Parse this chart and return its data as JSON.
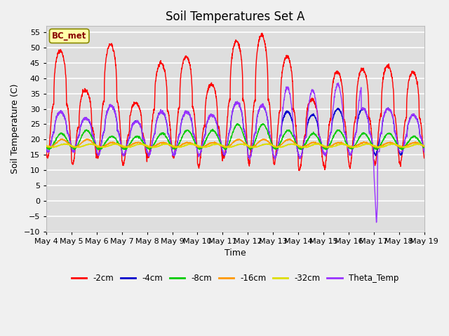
{
  "title": "Soil Temperatures Set A",
  "xlabel": "Time",
  "ylabel": "Soil Temperature (C)",
  "ylim": [
    -10,
    57
  ],
  "yticks": [
    -10,
    -5,
    0,
    5,
    10,
    15,
    20,
    25,
    30,
    35,
    40,
    45,
    50,
    55
  ],
  "annotation_text": "BC_met",
  "series_colors": {
    "-2cm": "#ff0000",
    "-4cm": "#0000cc",
    "-8cm": "#00cc00",
    "-16cm": "#ff9900",
    "-32cm": "#dddd00",
    "Theta_Temp": "#9933ff"
  },
  "background_color": "#dddddd",
  "plot_bg_color": "#dddddd",
  "grid_color": "#ffffff",
  "title_fontsize": 12,
  "axis_label_fontsize": 9,
  "tick_fontsize": 8
}
